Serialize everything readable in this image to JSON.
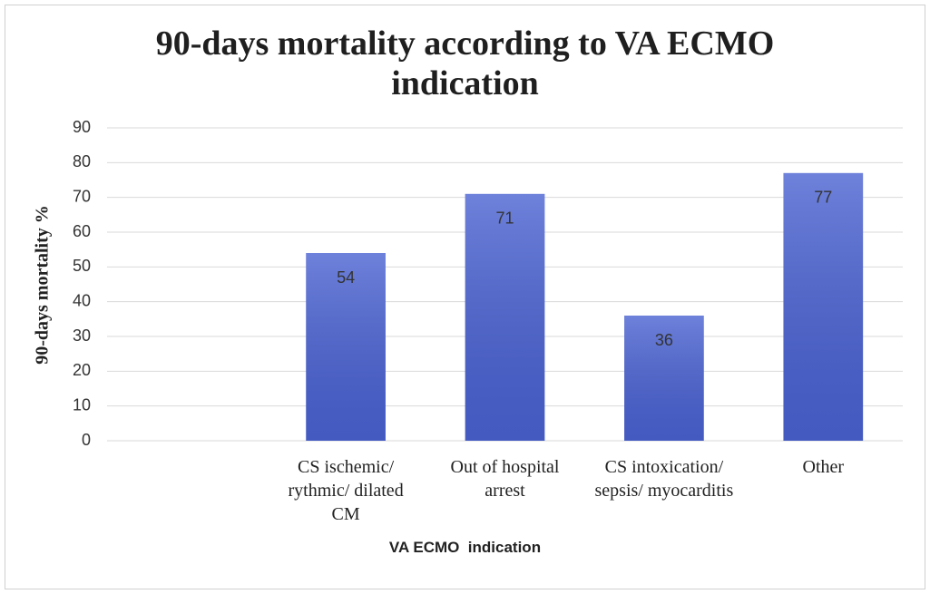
{
  "chart_data": {
    "type": "bar",
    "title": "90-days mortality according to VA ECMO indication",
    "x_label": "VA ECMO  indication",
    "y_label": "90-days mortality %",
    "categories": [
      null,
      "CS ischemic/ rythmic/ dilated CM",
      "Out of hospital arrest",
      "CS intoxication/ sepsis/ myocarditis",
      "Other"
    ],
    "values": [
      null,
      54,
      71,
      36,
      77
    ],
    "color": "#4a62d2",
    "ylim": [
      0,
      90
    ],
    "yticks": [
      0,
      10,
      20,
      30,
      40,
      50,
      60,
      70,
      80,
      90
    ],
    "grid": true
  }
}
